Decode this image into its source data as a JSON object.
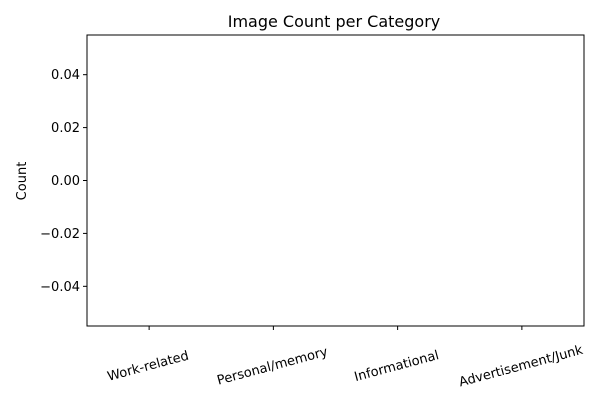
{
  "chart_data": {
    "type": "bar",
    "title": "Image Count per Category",
    "xlabel": "",
    "ylabel": "Count",
    "categories": [
      "Work-related",
      "Personal/memory",
      "Informational",
      "Advertisement/Junk"
    ],
    "values": [
      0,
      0,
      0,
      0
    ],
    "ylim": [
      -0.055,
      0.055
    ],
    "yticks": [
      -0.04,
      -0.02,
      0.0,
      0.02,
      0.04
    ],
    "ytick_labels": [
      "−0.04",
      "−0.02",
      "0.00",
      "0.02",
      "0.04"
    ],
    "grid": false,
    "legend": "none"
  }
}
